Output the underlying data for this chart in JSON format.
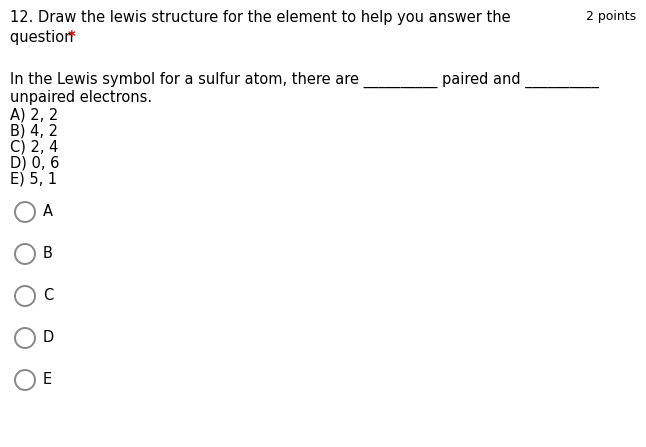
{
  "title_line1": "12. Draw the lewis structure for the element to help you answer the",
  "title_line2_main": "question ",
  "title_line2_star": "*",
  "title_right": "2 points",
  "q_prefix": "In the Lewis symbol for a sulfur atom, there are ",
  "q_blank1": "__________",
  "q_mid": " paired and ",
  "q_blank2": "__________",
  "q_line2": "unpaired electrons.",
  "choices": [
    "A) 2, 2",
    "B) 4, 2",
    "C) 2, 4",
    "D) 0, 6",
    "E) 5, 1"
  ],
  "radio_labels": [
    "A",
    "B",
    "C",
    "D",
    "E"
  ],
  "bg_color": "#ffffff",
  "text_color": "#000000",
  "star_color": "#cc0000",
  "radio_color": "#888888",
  "font_size_title": 10.5,
  "font_size_points": 9.0,
  "font_size_question": 10.5,
  "font_size_choices": 10.5,
  "font_size_radio_label": 10.5
}
